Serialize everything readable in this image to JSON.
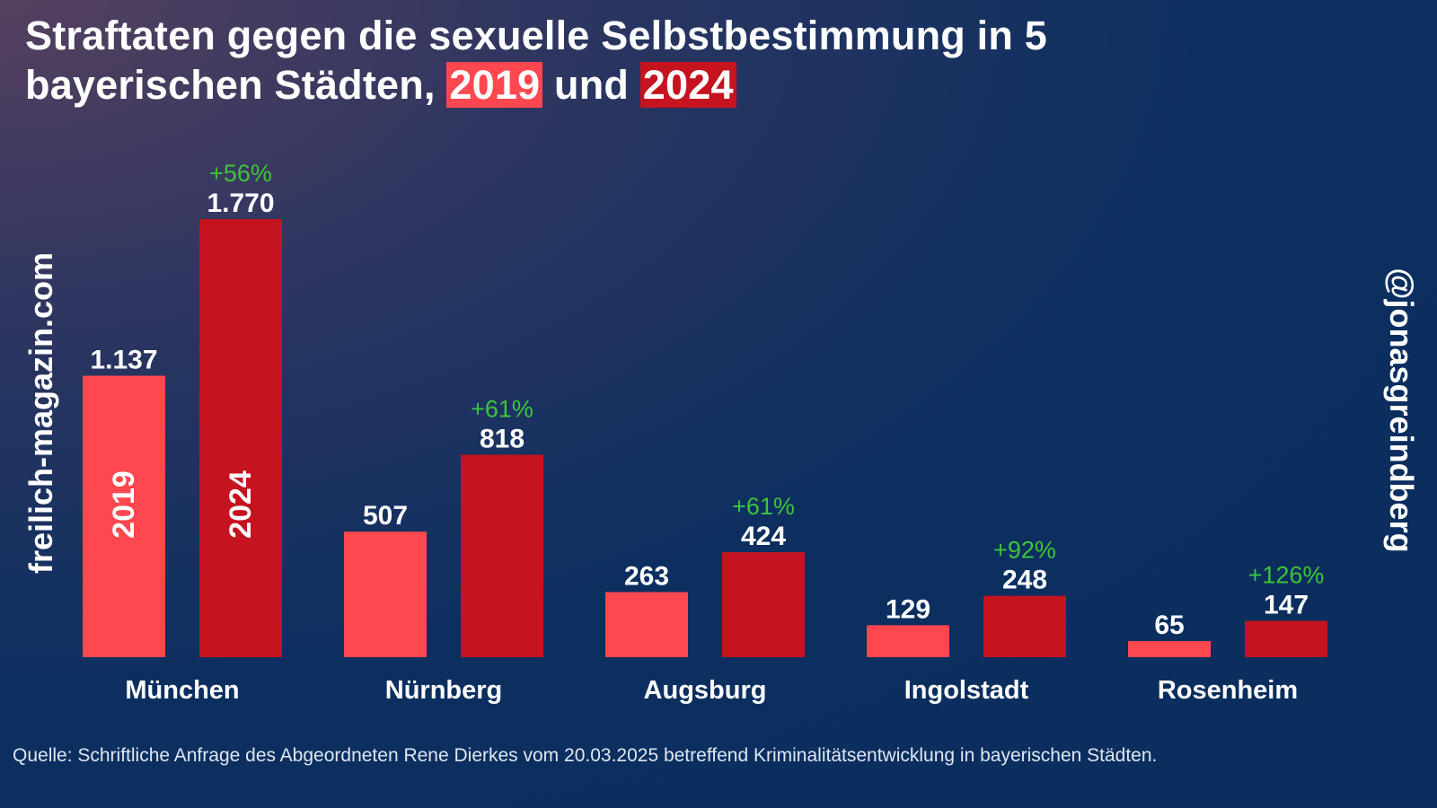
{
  "title": {
    "line1": "Straftaten gegen die sexuelle Selbstbestimmung in 5",
    "line2_prefix": "bayerischen Städten,",
    "year1": "2019",
    "connector": "und",
    "year2": "2024"
  },
  "watermark_left": "freilich-magazin.com",
  "watermark_right": "@jonasgreindberg",
  "source": "Quelle: Schriftliche Anfrage des Abgeordneten Rene Dierkes vom 20.03.2025 betreffend Kriminalitätsentwicklung in bayerischen Städten.",
  "colors": {
    "2019": "#ff474f",
    "2024": "#c5131f",
    "change": "#3ec43a"
  },
  "chart_data": {
    "type": "bar",
    "categories": [
      "München",
      "Nürnberg",
      "Augsburg",
      "Ingolstadt",
      "Rosenheim"
    ],
    "series": [
      {
        "name": "2019",
        "values": [
          1137,
          507,
          263,
          129,
          65
        ],
        "labels": [
          "1.137",
          "507",
          "263",
          "129",
          "65"
        ]
      },
      {
        "name": "2024",
        "values": [
          1770,
          818,
          424,
          248,
          147
        ],
        "labels": [
          "1.770",
          "818",
          "424",
          "248",
          "147"
        ]
      }
    ],
    "changes": [
      "+56%",
      "+61%",
      "+61%",
      "+92%",
      "+126%"
    ],
    "grid": false,
    "ylim": [
      0,
      1770
    ]
  }
}
